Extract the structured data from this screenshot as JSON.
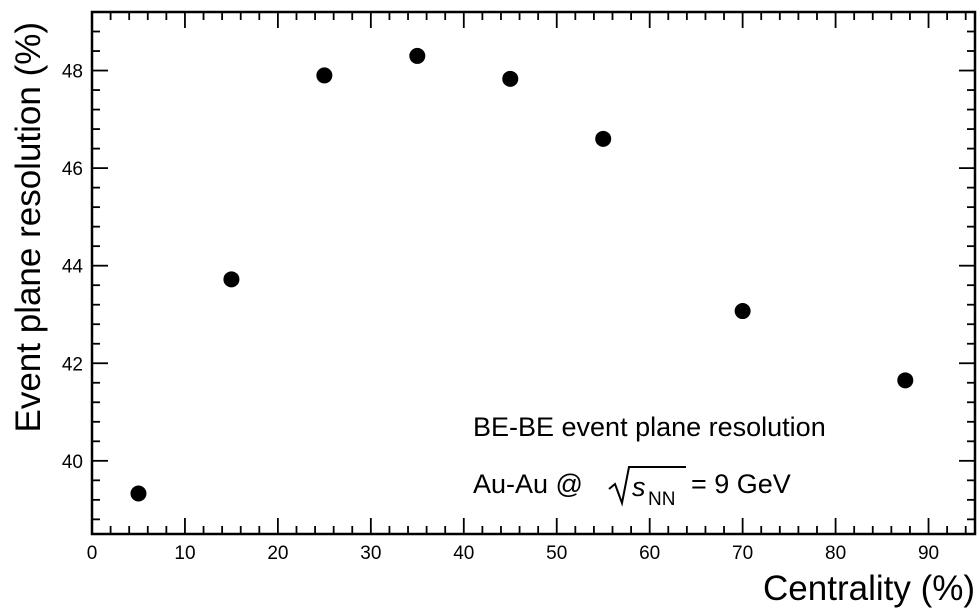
{
  "chart_data": {
    "type": "scatter",
    "xlabel": "Centrality (%)",
    "ylabel": "Event plane resolution (%)",
    "xlim": [
      0,
      95
    ],
    "ylim": [
      38.5,
      49.2
    ],
    "x_ticks": [
      "0",
      "10",
      "20",
      "30",
      "40",
      "50",
      "60",
      "70",
      "80",
      "90"
    ],
    "y_ticks": [
      "40",
      "42",
      "44",
      "46",
      "48"
    ],
    "annotations": {
      "line1": "BE-BE event plane resolution",
      "line2_prefix": "Au-Au @",
      "line2_var": "s",
      "line2_sub": "NN",
      "line2_suffix": "= 9 GeV"
    },
    "series": [
      {
        "points": [
          {
            "x": 5,
            "y": 39.33
          },
          {
            "x": 15,
            "y": 43.72
          },
          {
            "x": 25,
            "y": 47.9
          },
          {
            "x": 35,
            "y": 48.3
          },
          {
            "x": 45,
            "y": 47.83
          },
          {
            "x": 55,
            "y": 46.6
          },
          {
            "x": 70,
            "y": 43.07
          },
          {
            "x": 87.5,
            "y": 41.65
          }
        ]
      }
    ],
    "marker_color": "#000000",
    "grid": false
  }
}
